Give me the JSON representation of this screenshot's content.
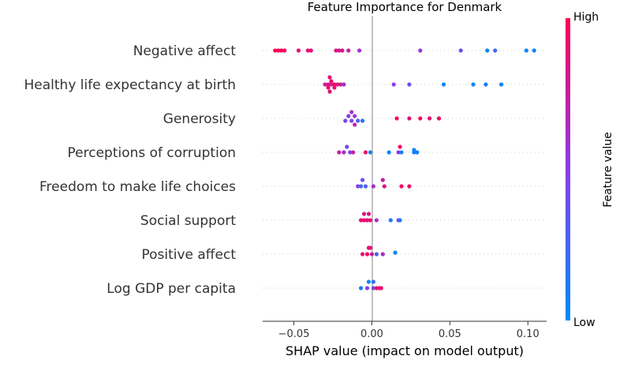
{
  "chart_data": {
    "type": "scatter",
    "title": "Feature Importance for Denmark",
    "xlabel": "SHAP value (impact on model output)",
    "xlim": [
      -0.07,
      0.112
    ],
    "xticks": [
      {
        "value": -0.05,
        "label": "−0.05"
      },
      {
        "value": 0.0,
        "label": "0.00"
      },
      {
        "value": 0.05,
        "label": "0.05"
      },
      {
        "value": 0.1,
        "label": "0.10"
      }
    ],
    "colorbar": {
      "label": "Feature value",
      "high": "High",
      "low": "Low",
      "high_color": "#ff0052",
      "low_color": "#008bfb"
    },
    "features": [
      {
        "name": "Negative affect",
        "points": [
          {
            "x": -0.062,
            "c": 1.0
          },
          {
            "x": -0.06,
            "c": 1.0
          },
          {
            "x": -0.058,
            "c": 0.95
          },
          {
            "x": -0.056,
            "c": 0.95
          },
          {
            "x": -0.047,
            "c": 0.9
          },
          {
            "x": -0.041,
            "c": 0.9
          },
          {
            "x": -0.039,
            "c": 0.85
          },
          {
            "x": -0.023,
            "c": 0.85
          },
          {
            "x": -0.021,
            "c": 0.8
          },
          {
            "x": -0.019,
            "c": 0.85
          },
          {
            "x": -0.015,
            "c": 0.75
          },
          {
            "x": -0.008,
            "c": 0.6
          },
          {
            "x": 0.031,
            "c": 0.55
          },
          {
            "x": 0.057,
            "c": 0.4
          },
          {
            "x": 0.074,
            "c": 0.05
          },
          {
            "x": 0.079,
            "c": 0.25
          },
          {
            "x": 0.099,
            "c": 0.05
          },
          {
            "x": 0.104,
            "c": 0.05
          }
        ]
      },
      {
        "name": "Healthy life expectancy at birth",
        "points": [
          {
            "x": -0.027,
            "c": 0.9,
            "dy": -9
          },
          {
            "x": -0.026,
            "c": 0.9,
            "dy": -4
          },
          {
            "x": -0.03,
            "c": 0.7,
            "dy": 0
          },
          {
            "x": -0.028,
            "c": 0.9,
            "dy": 0
          },
          {
            "x": -0.026,
            "c": 0.8,
            "dy": 0
          },
          {
            "x": -0.024,
            "c": 0.95,
            "dy": 0
          },
          {
            "x": -0.022,
            "c": 0.85,
            "dy": 0
          },
          {
            "x": -0.02,
            "c": 0.8,
            "dy": 0
          },
          {
            "x": -0.018,
            "c": 0.6,
            "dy": 0
          },
          {
            "x": -0.028,
            "c": 0.9,
            "dy": 4
          },
          {
            "x": -0.024,
            "c": 0.9,
            "dy": 4
          },
          {
            "x": -0.027,
            "c": 0.9,
            "dy": 9
          },
          {
            "x": 0.014,
            "c": 0.5,
            "dy": 0
          },
          {
            "x": 0.024,
            "c": 0.4,
            "dy": 0
          },
          {
            "x": 0.046,
            "c": 0.05,
            "dy": 0
          },
          {
            "x": 0.065,
            "c": 0.05,
            "dy": 0
          },
          {
            "x": 0.073,
            "c": 0.1,
            "dy": 0
          },
          {
            "x": 0.083,
            "c": 0.05,
            "dy": 0
          }
        ]
      },
      {
        "name": "Generosity",
        "points": [
          {
            "x": -0.013,
            "c": 0.6,
            "dy": -8
          },
          {
            "x": -0.015,
            "c": 0.5,
            "dy": -3
          },
          {
            "x": -0.011,
            "c": 0.55,
            "dy": -3
          },
          {
            "x": -0.017,
            "c": 0.4,
            "dy": 3
          },
          {
            "x": -0.013,
            "c": 0.45,
            "dy": 3
          },
          {
            "x": -0.009,
            "c": 0.3,
            "dy": 3
          },
          {
            "x": -0.006,
            "c": 0.15,
            "dy": 3
          },
          {
            "x": -0.011,
            "c": 0.7,
            "dy": 8
          },
          {
            "x": 0.016,
            "c": 0.95,
            "dy": 0
          },
          {
            "x": 0.024,
            "c": 0.9,
            "dy": 0
          },
          {
            "x": 0.031,
            "c": 0.95,
            "dy": 0
          },
          {
            "x": 0.037,
            "c": 0.9,
            "dy": 0
          },
          {
            "x": 0.043,
            "c": 0.95,
            "dy": 0
          }
        ]
      },
      {
        "name": "Perceptions of corruption",
        "points": [
          {
            "x": -0.016,
            "c": 0.4,
            "dy": -7
          },
          {
            "x": -0.018,
            "c": 0.6,
            "dy": 0
          },
          {
            "x": -0.014,
            "c": 0.5,
            "dy": 0
          },
          {
            "x": -0.012,
            "c": 0.7,
            "dy": 0
          },
          {
            "x": -0.021,
            "c": 0.75,
            "dy": 0
          },
          {
            "x": -0.004,
            "c": 0.9,
            "dy": 0
          },
          {
            "x": -0.001,
            "c": 0.1,
            "dy": 0
          },
          {
            "x": 0.011,
            "c": 0.05,
            "dy": 0
          },
          {
            "x": 0.017,
            "c": 0.5,
            "dy": 0
          },
          {
            "x": 0.019,
            "c": 0.1,
            "dy": 0
          },
          {
            "x": 0.018,
            "c": 0.9,
            "dy": -7
          },
          {
            "x": 0.027,
            "c": 0.1,
            "dy": 0
          },
          {
            "x": 0.029,
            "c": 0.05,
            "dy": 0
          },
          {
            "x": 0.027,
            "c": 0.05,
            "dy": -3
          }
        ]
      },
      {
        "name": "Freedom to make life choices",
        "points": [
          {
            "x": -0.006,
            "c": 0.4,
            "dy": -8
          },
          {
            "x": -0.009,
            "c": 0.5,
            "dy": 0
          },
          {
            "x": -0.007,
            "c": 0.2,
            "dy": 0
          },
          {
            "x": -0.004,
            "c": 0.3,
            "dy": 0
          },
          {
            "x": 0.001,
            "c": 0.6,
            "dy": 0
          },
          {
            "x": 0.007,
            "c": 0.75,
            "dy": -8
          },
          {
            "x": 0.008,
            "c": 0.85,
            "dy": 0
          },
          {
            "x": 0.019,
            "c": 0.95,
            "dy": 0
          },
          {
            "x": 0.024,
            "c": 0.9,
            "dy": 0
          }
        ]
      },
      {
        "name": "Social support",
        "points": [
          {
            "x": -0.005,
            "c": 0.8,
            "dy": -8
          },
          {
            "x": -0.002,
            "c": 0.85,
            "dy": -8
          },
          {
            "x": -0.007,
            "c": 0.9,
            "dy": 0
          },
          {
            "x": -0.005,
            "c": 0.95,
            "dy": 0
          },
          {
            "x": -0.003,
            "c": 0.85,
            "dy": 0
          },
          {
            "x": -0.001,
            "c": 0.9,
            "dy": 0
          },
          {
            "x": 0.003,
            "c": 0.6,
            "dy": 0
          },
          {
            "x": 0.012,
            "c": 0.1,
            "dy": 0
          },
          {
            "x": 0.018,
            "c": 0.1,
            "dy": 0
          },
          {
            "x": 0.017,
            "c": 0.3,
            "dy": 0
          }
        ]
      },
      {
        "name": "Positive affect",
        "points": [
          {
            "x": -0.002,
            "c": 0.9,
            "dy": -8
          },
          {
            "x": -0.001,
            "c": 0.9,
            "dy": -8
          },
          {
            "x": -0.006,
            "c": 0.9,
            "dy": 0
          },
          {
            "x": -0.003,
            "c": 0.95,
            "dy": 0
          },
          {
            "x": 0.0,
            "c": 0.8,
            "dy": 0
          },
          {
            "x": 0.003,
            "c": 0.3,
            "dy": 0
          },
          {
            "x": 0.007,
            "c": 0.6,
            "dy": 0
          },
          {
            "x": 0.015,
            "c": 0.05,
            "dy": -2
          }
        ]
      },
      {
        "name": "Log GDP per capita",
        "points": [
          {
            "x": -0.002,
            "c": 0.05,
            "dy": -8
          },
          {
            "x": 0.001,
            "c": 0.2,
            "dy": -8
          },
          {
            "x": -0.007,
            "c": 0.1,
            "dy": 0
          },
          {
            "x": -0.003,
            "c": 0.5,
            "dy": 0
          },
          {
            "x": 0.001,
            "c": 0.4,
            "dy": 0
          },
          {
            "x": 0.003,
            "c": 0.9,
            "dy": 0
          },
          {
            "x": 0.005,
            "c": 0.95,
            "dy": 0
          },
          {
            "x": 0.006,
            "c": 0.9,
            "dy": 0
          }
        ]
      }
    ]
  }
}
